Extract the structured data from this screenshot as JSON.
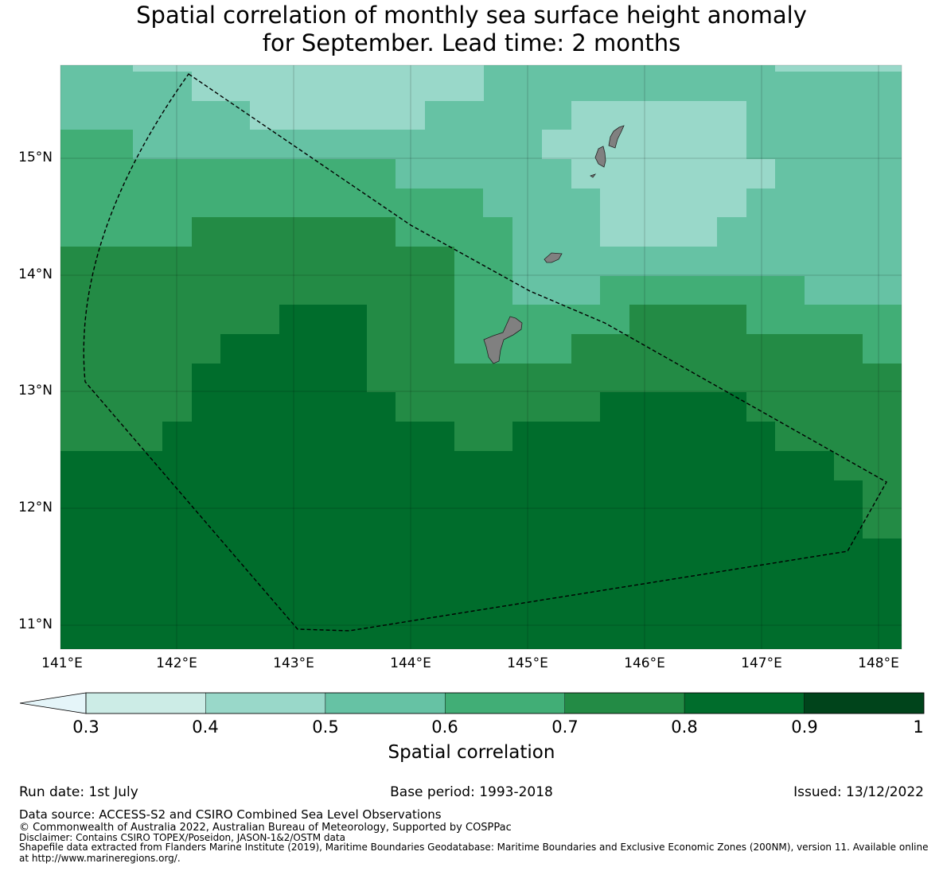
{
  "title_line1": "Spatial correlation of monthly sea surface height anomaly",
  "title_line2": "for September. Lead time: 2 months",
  "map": {
    "lat_labels": [
      "15°N",
      "14°N",
      "13°N",
      "12°N",
      "11°N"
    ],
    "lon_labels": [
      "141°E",
      "142°E",
      "143°E",
      "144°E",
      "145°E",
      "146°E",
      "147°E",
      "148°E"
    ],
    "lat_values": [
      15,
      14,
      13,
      12,
      11
    ],
    "lon_values": [
      141,
      142,
      143,
      144,
      145,
      146,
      147,
      148
    ],
    "extent": {
      "lon_min": 141.0,
      "lon_max": 148.2,
      "lat_min": 10.8,
      "lat_max": 15.8
    },
    "land_color": "#808080",
    "eez_boundary_style": "dashed black line"
  },
  "colorbar": {
    "ticks": [
      "0.3",
      "0.4",
      "0.5",
      "0.6",
      "0.7",
      "0.8",
      "0.9",
      "1"
    ],
    "bins": [
      {
        "from": 0.3,
        "to": 0.4,
        "color": "#ccece6"
      },
      {
        "from": 0.4,
        "to": 0.5,
        "color": "#99d8c9"
      },
      {
        "from": 0.5,
        "to": 0.6,
        "color": "#66c2a4"
      },
      {
        "from": 0.6,
        "to": 0.7,
        "color": "#41ae76"
      },
      {
        "from": 0.7,
        "to": 0.8,
        "color": "#238b45"
      },
      {
        "from": 0.8,
        "to": 0.9,
        "color": "#006d2c"
      },
      {
        "from": 0.9,
        "to": 1.0,
        "color": "#00441b"
      }
    ],
    "under_color": "#e5f5f9",
    "label": "Spatial correlation"
  },
  "footer": {
    "run_date": "Run date: 1st July",
    "base_period": "Base period: 1993-2018",
    "issued": "Issued: 13/12/2022",
    "data_source": "Data source: ACCESS-S2 and CSIRO Combined Sea Level Observations",
    "copyright": "© Commonwealth of Australia 2022, Australian Bureau of Meteorology, Supported by COSPPac",
    "disclaimer": "Disclaimer: Contains CSIRO TOPEX/Poseidon, JASON-1&2/OSTM data",
    "shapefile_line1": "Shapefile data extracted from Flanders Marine Institute (2019), Maritime Boundaries Geodatabase: Maritime Boundaries and Exclusive Economic Zones (200NM), version 11. Available online",
    "shapefile_line2": "at http://www.marineregions.org/."
  }
}
